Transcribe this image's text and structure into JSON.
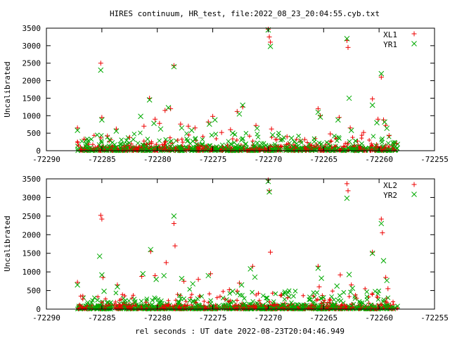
{
  "title": "HIRES continuum, HR_test, file:2022_08_23_20:04:55.cyb.txt",
  "xlabel": "rel seconds : UT date 2022-08-23T20:04:46.949",
  "colors": {
    "series_a": "#ee0000",
    "series_b": "#00aa00"
  },
  "chart_data": [
    {
      "type": "scatter",
      "panel": "top",
      "ylabel": "Uncalibrated",
      "xlim": [
        -72290,
        -72255
      ],
      "ylim": [
        0,
        3500
      ],
      "xticks": [
        -72290,
        -72285,
        -72280,
        -72275,
        -72270,
        -72265,
        -72260,
        -72255
      ],
      "yticks": [
        0,
        500,
        1000,
        1500,
        2000,
        2500,
        3000,
        3500
      ],
      "legend_position": "top-right",
      "series": [
        {
          "name": "XL1",
          "marker": "plus",
          "outliers": [
            [
              -72287.2,
              650
            ],
            [
              -72286.6,
              330
            ],
            [
              -72285.1,
              2500
            ],
            [
              -72285.0,
              950
            ],
            [
              -72284.5,
              420
            ],
            [
              -72283.7,
              620
            ],
            [
              -72282.5,
              380
            ],
            [
              -72281.2,
              700
            ],
            [
              -72280.7,
              1500
            ],
            [
              -72280.2,
              900
            ],
            [
              -72279.8,
              780
            ],
            [
              -72279.3,
              1150
            ],
            [
              -72278.8,
              1200
            ],
            [
              -72278.5,
              2430
            ],
            [
              -72277.9,
              760
            ],
            [
              -72277.2,
              700
            ],
            [
              -72276.6,
              650
            ],
            [
              -72275.4,
              820
            ],
            [
              -72275.0,
              980
            ],
            [
              -72274.2,
              520
            ],
            [
              -72273.4,
              600
            ],
            [
              -72272.8,
              1120
            ],
            [
              -72272.3,
              1250
            ],
            [
              -72271.1,
              720
            ],
            [
              -72270.0,
              3470
            ],
            [
              -72269.9,
              3250
            ],
            [
              -72269.8,
              3100
            ],
            [
              -72269.7,
              620
            ],
            [
              -72268.3,
              400
            ],
            [
              -72266.7,
              320
            ],
            [
              -72265.5,
              1200
            ],
            [
              -72265.3,
              1000
            ],
            [
              -72264.4,
              480
            ],
            [
              -72263.6,
              950
            ],
            [
              -72262.9,
              3150
            ],
            [
              -72262.8,
              2950
            ],
            [
              -72262.6,
              650
            ],
            [
              -72261.4,
              520
            ],
            [
              -72260.6,
              1480
            ],
            [
              -72260.1,
              900
            ],
            [
              -72259.8,
              2100
            ],
            [
              -72259.6,
              880
            ],
            [
              -72259.4,
              720
            ],
            [
              -72259.1,
              430
            ]
          ]
        },
        {
          "name": "YR1",
          "marker": "cross",
          "outliers": [
            [
              -72287.2,
              580
            ],
            [
              -72285.1,
              2300
            ],
            [
              -72285.0,
              880
            ],
            [
              -72284.3,
              300
            ],
            [
              -72283.7,
              560
            ],
            [
              -72281.5,
              980
            ],
            [
              -72280.7,
              1450
            ],
            [
              -72280.3,
              780
            ],
            [
              -72279.7,
              620
            ],
            [
              -72279.0,
              1230
            ],
            [
              -72278.5,
              2400
            ],
            [
              -72277.8,
              650
            ],
            [
              -72276.9,
              580
            ],
            [
              -72275.3,
              760
            ],
            [
              -72274.8,
              880
            ],
            [
              -72273.2,
              500
            ],
            [
              -72272.6,
              1050
            ],
            [
              -72272.3,
              1300
            ],
            [
              -72271.0,
              640
            ],
            [
              -72270.0,
              3450
            ],
            [
              -72269.8,
              2980
            ],
            [
              -72269.6,
              450
            ],
            [
              -72267.9,
              360
            ],
            [
              -72265.5,
              1100
            ],
            [
              -72265.3,
              960
            ],
            [
              -72263.7,
              880
            ],
            [
              -72262.9,
              3200
            ],
            [
              -72262.7,
              1500
            ],
            [
              -72262.5,
              580
            ],
            [
              -72260.6,
              1300
            ],
            [
              -72260.2,
              800
            ],
            [
              -72259.8,
              2200
            ],
            [
              -72259.5,
              820
            ],
            [
              -72259.3,
              640
            ]
          ]
        }
      ]
    },
    {
      "type": "scatter",
      "panel": "bottom",
      "ylabel": "Uncalibrated",
      "xlim": [
        -72290,
        -72255
      ],
      "ylim": [
        0,
        3500
      ],
      "xticks": [
        -72290,
        -72285,
        -72280,
        -72275,
        -72270,
        -72265,
        -72260,
        -72255
      ],
      "yticks": [
        0,
        500,
        1000,
        1500,
        2000,
        2500,
        3000,
        3500
      ],
      "legend_position": "top-right",
      "series": [
        {
          "name": "XL2",
          "marker": "plus",
          "outliers": [
            [
              -72287.2,
              720
            ],
            [
              -72285.1,
              2520
            ],
            [
              -72285.0,
              2420
            ],
            [
              -72284.9,
              850
            ],
            [
              -72283.6,
              650
            ],
            [
              -72281.4,
              880
            ],
            [
              -72280.6,
              1550
            ],
            [
              -72280.2,
              900
            ],
            [
              -72279.2,
              1250
            ],
            [
              -72278.5,
              2300
            ],
            [
              -72278.4,
              1700
            ],
            [
              -72277.6,
              750
            ],
            [
              -72276.3,
              800
            ],
            [
              -72275.2,
              950
            ],
            [
              -72273.5,
              520
            ],
            [
              -72272.6,
              700
            ],
            [
              -72271.4,
              1150
            ],
            [
              -72270.0,
              3470
            ],
            [
              -72269.9,
              3180
            ],
            [
              -72269.8,
              1530
            ],
            [
              -72268.8,
              380
            ],
            [
              -72265.5,
              1150
            ],
            [
              -72265.4,
              600
            ],
            [
              -72263.5,
              920
            ],
            [
              -72262.9,
              3370
            ],
            [
              -72262.8,
              3180
            ],
            [
              -72262.5,
              650
            ],
            [
              -72260.6,
              1530
            ],
            [
              -72259.8,
              2420
            ],
            [
              -72259.7,
              2050
            ],
            [
              -72259.4,
              850
            ],
            [
              -72259.2,
              550
            ]
          ]
        },
        {
          "name": "YR2",
          "marker": "cross",
          "outliers": [
            [
              -72287.2,
              650
            ],
            [
              -72285.2,
              1420
            ],
            [
              -72285.0,
              920
            ],
            [
              -72284.8,
              480
            ],
            [
              -72283.6,
              600
            ],
            [
              -72281.3,
              950
            ],
            [
              -72280.6,
              1600
            ],
            [
              -72280.1,
              800
            ],
            [
              -72279.4,
              900
            ],
            [
              -72278.5,
              2500
            ],
            [
              -72277.8,
              820
            ],
            [
              -72276.8,
              680
            ],
            [
              -72275.4,
              900
            ],
            [
              -72273.2,
              480
            ],
            [
              -72272.4,
              650
            ],
            [
              -72271.6,
              1080
            ],
            [
              -72271.2,
              860
            ],
            [
              -72270.0,
              3430
            ],
            [
              -72269.9,
              3150
            ],
            [
              -72268.5,
              420
            ],
            [
              -72265.5,
              1100
            ],
            [
              -72265.2,
              830
            ],
            [
              -72263.8,
              620
            ],
            [
              -72262.9,
              2980
            ],
            [
              -72262.7,
              930
            ],
            [
              -72262.4,
              560
            ],
            [
              -72260.6,
              1500
            ],
            [
              -72259.8,
              2300
            ],
            [
              -72259.6,
              1300
            ],
            [
              -72259.3,
              770
            ]
          ]
        }
      ]
    }
  ]
}
